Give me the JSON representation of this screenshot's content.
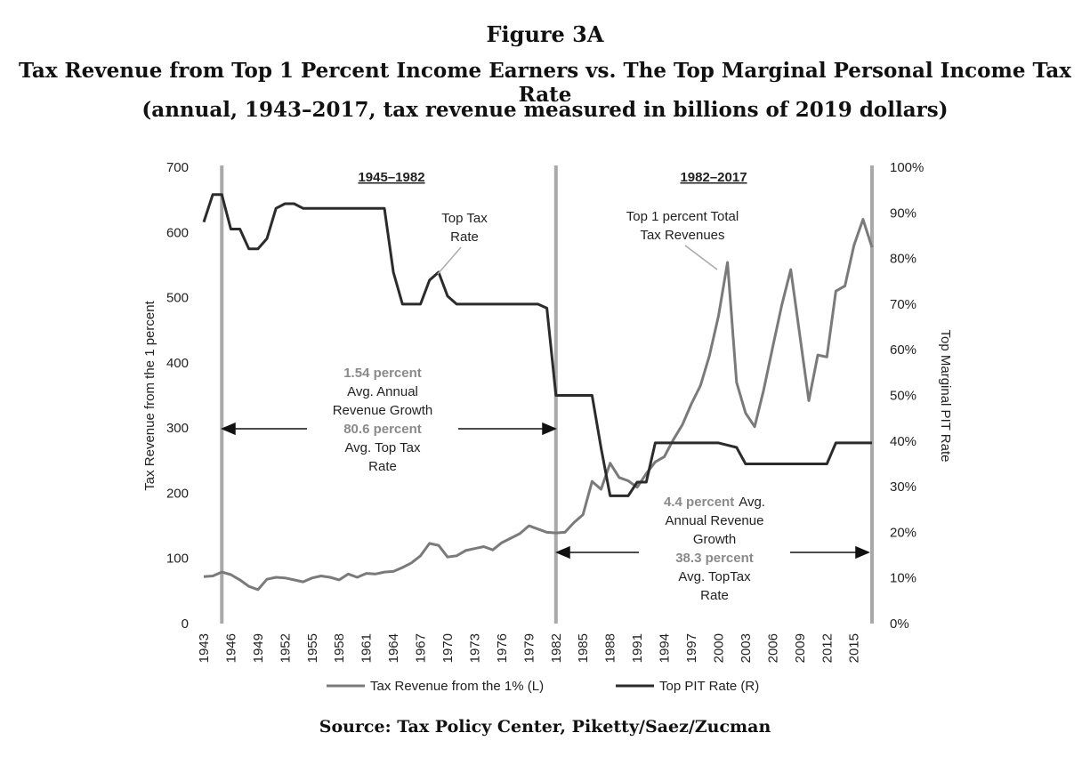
{
  "figure": {
    "label": "Figure 3A",
    "title": "Tax Revenue from Top 1 Percent Income Earners vs. The Top Marginal Personal Income Tax Rate",
    "subtitle": "(annual, 1943–2017, tax revenue measured in billions of 2019 dollars)",
    "source": "Source: Tax Policy Center, Piketty/Saez/Zucman"
  },
  "chart_data": {
    "type": "line",
    "ylabel_left": "Tax Revenue from the 1 percent",
    "ylabel_right": "Top Marginal PIT Rate",
    "ylim_left": [
      0,
      700
    ],
    "ylim_right": [
      0,
      100
    ],
    "y_ticks_left": [
      "0",
      "100",
      "200",
      "300",
      "400",
      "500",
      "600",
      "700"
    ],
    "y_ticks_right": [
      "0%",
      "10%",
      "20%",
      "30%",
      "40%",
      "50%",
      "60%",
      "70%",
      "80%",
      "90%",
      "100%"
    ],
    "x_ticks": [
      "1943",
      "1946",
      "1949",
      "1952",
      "1955",
      "1958",
      "1961",
      "1964",
      "1967",
      "1970",
      "1973",
      "1976",
      "1979",
      "1982",
      "1985",
      "1988",
      "1991",
      "1994",
      "1997",
      "2000",
      "2003",
      "2006",
      "2009",
      "2012",
      "2015"
    ],
    "xlim": [
      1943,
      2017
    ],
    "grid": false,
    "legend_position": "bottom",
    "series": [
      {
        "name": "Tax Revenue from the 1% (L)",
        "axis": "left",
        "color": "#7a7a7a",
        "x": [
          1943,
          1944,
          1945,
          1946,
          1947,
          1948,
          1949,
          1950,
          1951,
          1952,
          1953,
          1954,
          1955,
          1956,
          1957,
          1958,
          1959,
          1960,
          1961,
          1962,
          1963,
          1964,
          1965,
          1966,
          1967,
          1968,
          1969,
          1970,
          1971,
          1972,
          1973,
          1974,
          1975,
          1976,
          1977,
          1978,
          1979,
          1980,
          1981,
          1982,
          1983,
          1984,
          1985,
          1986,
          1987,
          1988,
          1989,
          1990,
          1991,
          1992,
          1993,
          1994,
          1995,
          1996,
          1997,
          1998,
          1999,
          2000,
          2001,
          2002,
          2003,
          2004,
          2005,
          2006,
          2007,
          2008,
          2009,
          2010,
          2011,
          2012,
          2013,
          2014,
          2015,
          2016,
          2017
        ],
        "values": [
          72,
          73,
          79,
          75,
          67,
          57,
          52,
          68,
          71,
          70,
          67,
          64,
          70,
          73,
          71,
          67,
          76,
          71,
          77,
          76,
          79,
          80,
          86,
          93,
          104,
          123,
          120,
          102,
          104,
          112,
          115,
          118,
          113,
          124,
          131,
          138,
          150,
          145,
          140,
          139,
          140,
          155,
          167,
          218,
          206,
          246,
          224,
          219,
          209,
          230,
          248,
          256,
          282,
          305,
          337,
          365,
          411,
          472,
          554,
          370,
          323,
          302,
          358,
          424,
          488,
          543,
          443,
          342,
          412,
          409,
          510,
          518,
          580,
          620,
          577
        ]
      },
      {
        "name": "Top PIT Rate (R)",
        "axis": "right",
        "color": "#2b2b2b",
        "x": [
          1943,
          1944,
          1945,
          1946,
          1947,
          1948,
          1949,
          1950,
          1951,
          1952,
          1953,
          1954,
          1955,
          1956,
          1957,
          1958,
          1959,
          1960,
          1961,
          1962,
          1963,
          1964,
          1965,
          1966,
          1967,
          1968,
          1969,
          1970,
          1971,
          1972,
          1973,
          1974,
          1975,
          1976,
          1977,
          1978,
          1979,
          1980,
          1981,
          1982,
          1983,
          1984,
          1985,
          1986,
          1987,
          1988,
          1989,
          1990,
          1991,
          1992,
          1993,
          1994,
          1995,
          1996,
          1997,
          1998,
          1999,
          2000,
          2001,
          2002,
          2003,
          2004,
          2005,
          2006,
          2007,
          2008,
          2009,
          2010,
          2011,
          2012,
          2013,
          2014,
          2015,
          2016,
          2017
        ],
        "values": [
          88,
          94,
          94,
          86.45,
          86.45,
          82.13,
          82.13,
          84.36,
          91,
          92,
          92,
          91,
          91,
          91,
          91,
          91,
          91,
          91,
          91,
          91,
          91,
          77,
          70,
          70,
          70,
          75.25,
          77,
          71.75,
          70,
          70,
          70,
          70,
          70,
          70,
          70,
          70,
          70,
          70,
          69.13,
          50,
          50,
          50,
          50,
          50,
          38.5,
          28,
          28,
          28,
          31,
          31,
          39.6,
          39.6,
          39.6,
          39.6,
          39.6,
          39.6,
          39.6,
          39.6,
          39.1,
          38.6,
          35,
          35,
          35,
          35,
          35,
          35,
          35,
          35,
          35,
          35,
          39.6,
          39.6,
          39.6,
          39.6,
          39.6
        ]
      }
    ],
    "periods": [
      {
        "label": "1945–1982",
        "start": 1945,
        "end": 1982
      },
      {
        "label": "1982–2017",
        "start": 1982,
        "end": 2017
      }
    ],
    "annotations": {
      "top_tax_rate_line1": "Top Tax",
      "top_tax_rate_line2": "Rate",
      "top1_revenue_line1": "Top 1 percent Total",
      "top1_revenue_line2": "Tax Revenues",
      "p1_growth": "1.54 percent",
      "p1_growth_l1": "Avg. Annual",
      "p1_growth_l2": "Revenue Growth",
      "p1_rate": "80.6 percent",
      "p1_rate_l1": "Avg. Top Tax",
      "p1_rate_l2": "Rate",
      "p2_growth": "4.4 percent",
      "p2_growth_l1": "Avg.",
      "p2_growth_l2": "Annual Revenue",
      "p2_growth_l3": "Growth",
      "p2_rate": "38.3 percent",
      "p2_rate_l1": "Avg. TopTax",
      "p2_rate_l2": "Rate"
    }
  }
}
